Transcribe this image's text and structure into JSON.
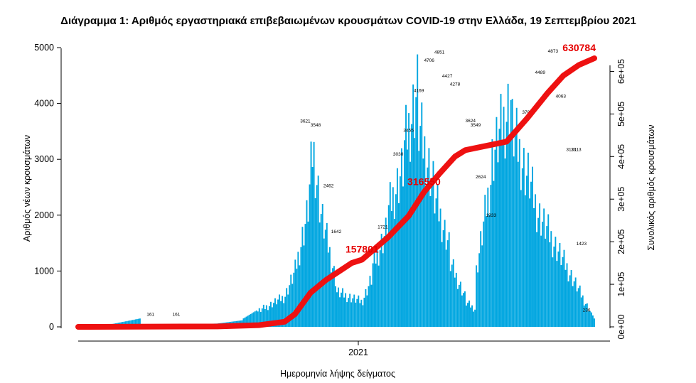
{
  "chart_data": {
    "type": "bar",
    "title": "Διάγραμμα 1: Αριθμός εργαστηριακά επιβεβαιωμένων κρουσμάτων COVID-19 στην Ελλάδα, 19 Σεπτεμβρίου 2021",
    "xlabel": "Ημερομηνία λήψης δείγματος",
    "ylabel": "Αριθμός νέων κρουσμάτων",
    "ylabel_right": "Συνολικός αριθμός κρουσμάτων",
    "ylim": [
      0,
      5000
    ],
    "ylim_right": [
      0,
      630784
    ],
    "yticks": [
      "0",
      "1000",
      "2000",
      "3000",
      "4000",
      "5000"
    ],
    "yticks_right": [
      "0e+00",
      "1e+05",
      "2e+05",
      "3e+05",
      "4e+05",
      "5e+05",
      "6e+05"
    ],
    "xtick": "2021",
    "series": [
      {
        "type": "bar",
        "color": "#00a6e0",
        "description": "daily new cases",
        "segments": [
          [
            0.0,
            0.06,
            5,
            40
          ],
          [
            0.06,
            0.12,
            40,
            150
          ],
          [
            0.12,
            0.27,
            20,
            60
          ],
          [
            0.27,
            0.32,
            60,
            120
          ],
          [
            0.32,
            0.4,
            150,
            600
          ],
          [
            0.4,
            0.42,
            600,
            1100
          ],
          [
            0.42,
            0.445,
            1100,
            2300
          ],
          [
            0.445,
            0.455,
            2300,
            3600
          ],
          [
            0.455,
            0.47,
            3600,
            2300
          ],
          [
            0.47,
            0.5,
            2300,
            900
          ],
          [
            0.5,
            0.55,
            700,
            500
          ],
          [
            0.55,
            0.57,
            500,
            1000
          ],
          [
            0.57,
            0.6,
            1200,
            2000
          ],
          [
            0.6,
            0.63,
            2300,
            3200
          ],
          [
            0.63,
            0.66,
            3500,
            4850
          ],
          [
            0.66,
            0.69,
            4000,
            2800
          ],
          [
            0.69,
            0.72,
            2600,
            1600
          ],
          [
            0.72,
            0.75,
            1300,
            600
          ],
          [
            0.75,
            0.77,
            500,
            350
          ],
          [
            0.77,
            0.8,
            1000,
            3000
          ],
          [
            0.8,
            0.84,
            3300,
            4600
          ],
          [
            0.84,
            0.87,
            4000,
            3000
          ],
          [
            0.87,
            0.89,
            3100,
            2300
          ],
          [
            0.89,
            1.0,
            2300,
            150
          ]
        ],
        "labels": [
          {
            "x": 0.14,
            "value": 161
          },
          {
            "x": 0.19,
            "value": 161
          },
          {
            "x": 0.44,
            "value": 3621
          },
          {
            "x": 0.46,
            "value": 3548
          },
          {
            "x": 0.485,
            "value": 2462
          },
          {
            "x": 0.5,
            "value": 1642
          },
          {
            "x": 0.59,
            "value": 1721
          },
          {
            "x": 0.62,
            "value": 3030
          },
          {
            "x": 0.64,
            "value": 3455
          },
          {
            "x": 0.66,
            "value": 4169
          },
          {
            "x": 0.68,
            "value": 4706
          },
          {
            "x": 0.7,
            "value": 4851
          },
          {
            "x": 0.715,
            "value": 4427
          },
          {
            "x": 0.73,
            "value": 4278
          },
          {
            "x": 0.76,
            "value": 3624
          },
          {
            "x": 0.77,
            "value": 3549
          },
          {
            "x": 0.78,
            "value": 2624
          },
          {
            "x": 0.8,
            "value": 1933
          },
          {
            "x": 0.87,
            "value": 3780
          },
          {
            "x": 0.895,
            "value": 4489
          },
          {
            "x": 0.92,
            "value": 4873
          },
          {
            "x": 0.935,
            "value": 4063
          },
          {
            "x": 0.955,
            "value": 3113
          },
          {
            "x": 0.965,
            "value": 3113
          },
          {
            "x": 0.975,
            "value": 1423
          },
          {
            "x": 0.985,
            "value": 236
          }
        ]
      },
      {
        "type": "line",
        "color": "#ee1111",
        "description": "cumulative total (right axis)",
        "points": [
          [
            0.0,
            0
          ],
          [
            0.27,
            1000
          ],
          [
            0.35,
            4000
          ],
          [
            0.4,
            12000
          ],
          [
            0.42,
            30000
          ],
          [
            0.45,
            80000
          ],
          [
            0.48,
            110000
          ],
          [
            0.53,
            150000
          ],
          [
            0.55,
            157801
          ],
          [
            0.6,
            210000
          ],
          [
            0.64,
            260000
          ],
          [
            0.67,
            316550
          ],
          [
            0.7,
            360000
          ],
          [
            0.73,
            400000
          ],
          [
            0.75,
            415000
          ],
          [
            0.79,
            425000
          ],
          [
            0.83,
            435000
          ],
          [
            0.87,
            490000
          ],
          [
            0.91,
            550000
          ],
          [
            0.94,
            590000
          ],
          [
            0.97,
            615000
          ],
          [
            1.0,
            630784
          ]
        ]
      }
    ],
    "annotations": [
      {
        "x": 0.55,
        "value": 157801,
        "text": "157801"
      },
      {
        "x": 0.67,
        "value": 316550,
        "text": "316550"
      },
      {
        "x": 1.0,
        "value": 630784,
        "text": "630784"
      }
    ]
  }
}
